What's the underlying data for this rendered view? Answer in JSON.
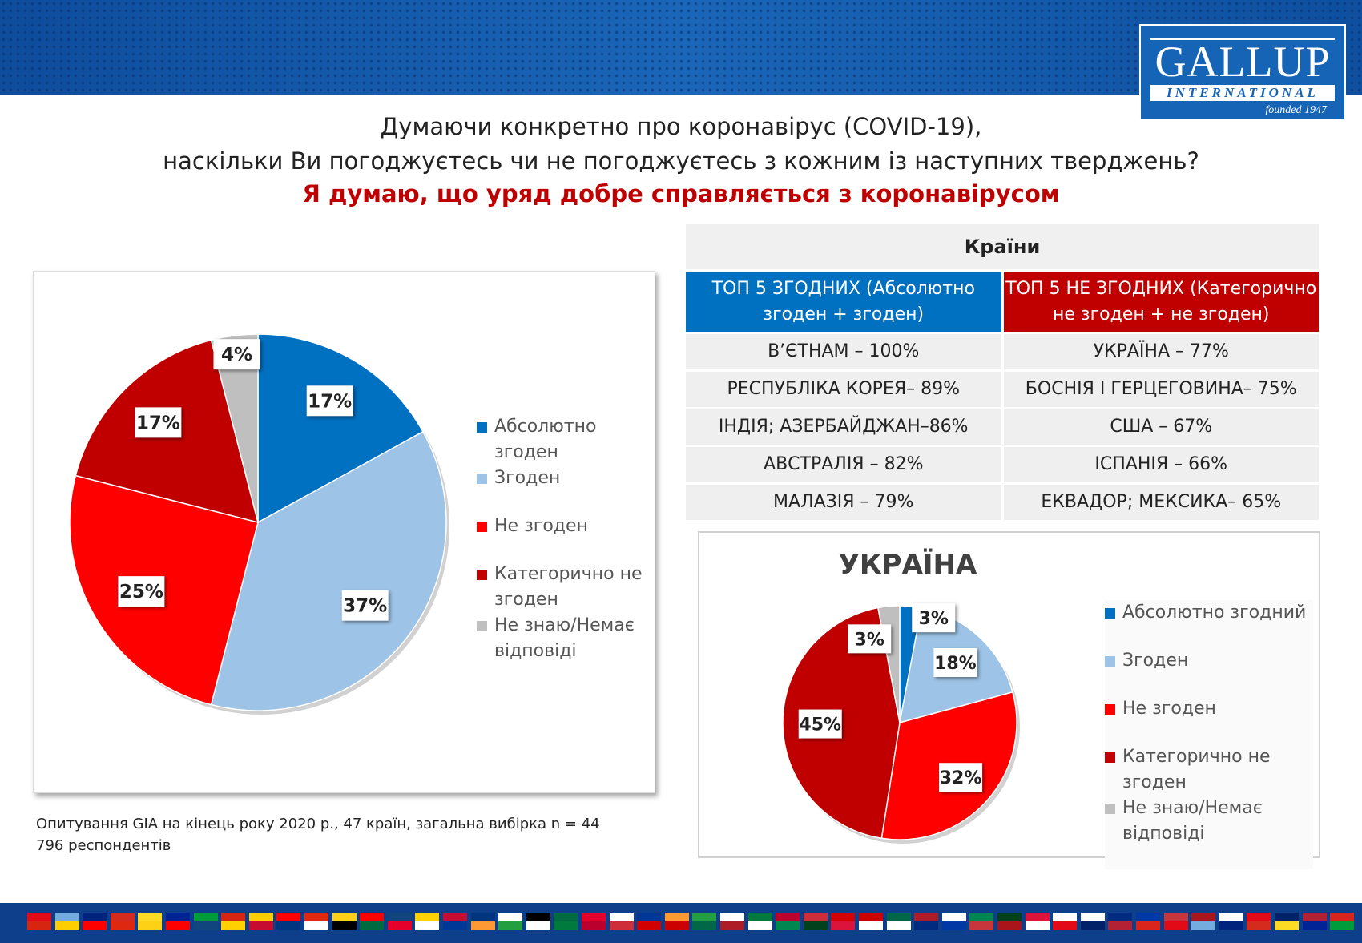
{
  "logo": {
    "name": "GALLUP",
    "sub": "INTERNATIONAL",
    "founded": "founded 1947"
  },
  "title": {
    "line1": "Думаючи конкретно про коронавірус (COVID-19),",
    "line2": "наскільки Ви погоджуєтесь чи не погоджуєтесь з кожним із наступних тверджень?",
    "statement": "Я думаю, що уряд добре справляється з коронавірусом"
  },
  "table": {
    "caption": "Країни",
    "col1_header": "ТОП 5 ЗГОДНИХ (Абсолютно згоден + згоден)",
    "col2_header": "ТОП 5 НЕ ЗГОДНИХ (Категорично не згоден + не згоден)",
    "rows": [
      [
        "В’ЄТНАМ – 100%",
        "УКРАЇНА – 77%"
      ],
      [
        "РЕСПУБЛІКА КОРЕЯ– 89%",
        "БОСНІЯ І ГЕРЦЕГОВИНА– 75%"
      ],
      [
        "ІНДІЯ; АЗЕРБАЙДЖАН–86%",
        "США – 67%"
      ],
      [
        "АВСТРАЛІЯ – 82%",
        "ІСПАНІЯ – 66%"
      ],
      [
        "МАЛАЗІЯ – 79%",
        "ЕКВАДОР; МЕКСИКА– 65%"
      ]
    ]
  },
  "footnote": "Опитування GIA на кінець року 2020 р., 47 країн, загальна вибірка n = 44 796 респондентів",
  "chart_data": [
    {
      "type": "pie",
      "title": "",
      "legend": "right",
      "categories": [
        "Абсолютно згоден",
        "Згоден",
        "Не згоден",
        "Категорично не згоден",
        "Не знаю/Немає відповіді"
      ],
      "values": [
        17,
        37,
        25,
        17,
        4
      ],
      "labels": [
        "17%",
        "37%",
        "25%",
        "17%",
        "4%"
      ],
      "colors": [
        "#0070c0",
        "#9dc3e6",
        "#ff0000",
        "#c00000",
        "#bfbfbf"
      ]
    },
    {
      "type": "pie",
      "title": "УКРАЇНА",
      "legend": "right",
      "categories": [
        "Абсолютно згодний",
        "Згоден",
        "Не згоден",
        "Категорично не згоден",
        "Не знаю/Немає відповіді"
      ],
      "values": [
        3,
        18,
        32,
        45,
        3
      ],
      "labels": [
        "3%",
        "18%",
        "32%",
        "45%",
        "3%"
      ],
      "colors": [
        "#0070c0",
        "#9dc3e6",
        "#ff0000",
        "#c00000",
        "#bfbfbf"
      ]
    }
  ]
}
